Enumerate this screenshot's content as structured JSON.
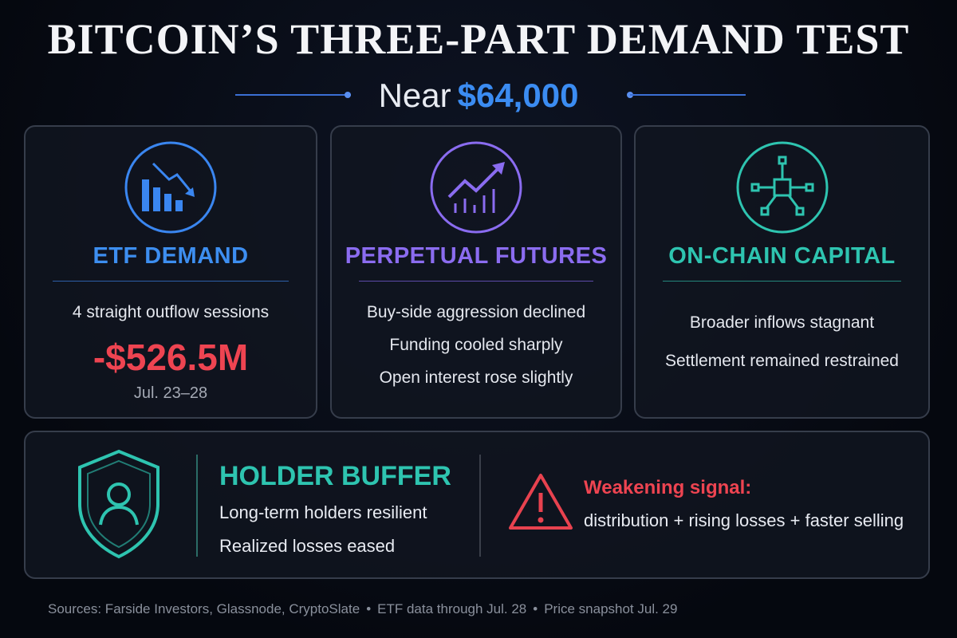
{
  "header": {
    "title": "BITCOIN’S THREE-PART DEMAND TEST",
    "subtitle": "Near",
    "price": "$64,000"
  },
  "cards": [
    {
      "title": "ETF DEMAND",
      "lines": [
        "4 straight outflow sessions"
      ],
      "figure": "-$526.5M",
      "date": "Jul. 23–28"
    },
    {
      "title": "PERPETUAL FUTURES",
      "lines": [
        "Buy-side aggression declined",
        "Funding cooled sharply",
        "Open interest rose slightly"
      ]
    },
    {
      "title": "ON-CHAIN CAPITAL",
      "lines": [
        "Broader inflows stagnant",
        "Settlement remained restrained"
      ]
    }
  ],
  "holder": {
    "title": "HOLDER BUFFER",
    "lines": [
      "Long-term holders resilient",
      "Realized losses eased"
    ]
  },
  "warning": {
    "title": "Weakening signal:",
    "text": "distribution + rising losses + faster selling"
  },
  "footer": [
    "Sources: Farside Investors, Glassnode, CryptoSlate",
    "ETF data through Jul. 28",
    "Price snapshot Jul. 29"
  ]
}
